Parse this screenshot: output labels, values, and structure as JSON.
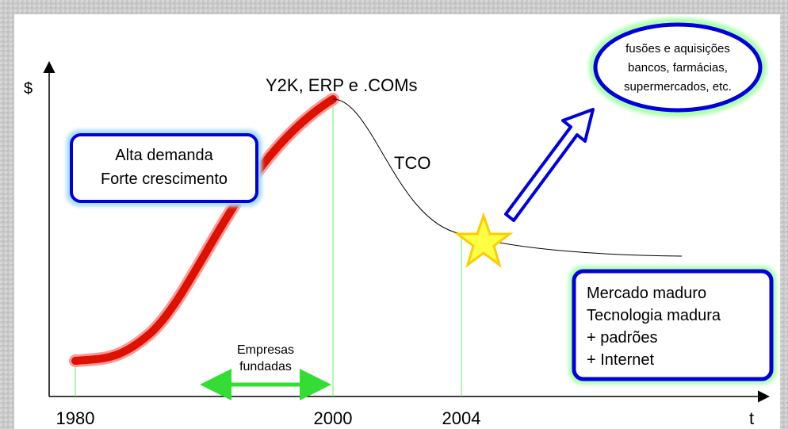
{
  "axes": {
    "y_label": "$",
    "x_label": "t",
    "years": [
      "1980",
      "2000",
      "2004"
    ]
  },
  "peak_label": "Y2K, ERP e .COMs",
  "curve_label": "TCO",
  "growth_box": [
    "Alta demanda",
    "Forte crescimento"
  ],
  "founded_label": [
    "Empresas",
    "fundadas"
  ],
  "mergers_bubble": [
    "fusões e aquisições",
    "bancos, farmácias,",
    "supermercados, etc."
  ],
  "mature_box": [
    "Mercado maduro",
    "Tecnologia madura",
    "+ padrões",
    "+ Internet"
  ]
}
